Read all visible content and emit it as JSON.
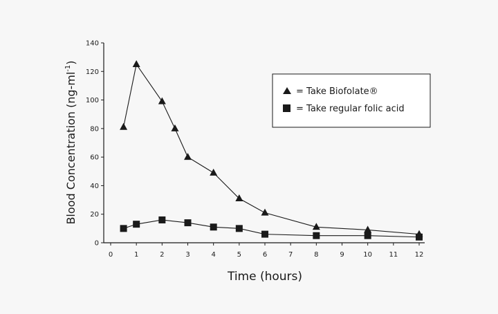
{
  "chart_data": {
    "type": "line",
    "title": "",
    "xlabel": "Time (hours)",
    "ylabel": "Blood Concentration (ng-ml",
    "ylabel_superscript": "-1",
    "ylabel_suffix": ")",
    "xlim": [
      0,
      12
    ],
    "ylim": [
      0,
      140
    ],
    "xticks": [
      0,
      1,
      2,
      3,
      4,
      5,
      6,
      7,
      8,
      9,
      10,
      11,
      12
    ],
    "yticks": [
      0,
      20,
      40,
      60,
      80,
      100,
      120,
      140
    ],
    "grid": false,
    "legend_position": "top-right",
    "series": [
      {
        "name": "= Take Biofolate®",
        "marker": "triangle",
        "x": [
          0.5,
          1,
          2,
          2.5,
          3,
          4,
          5,
          6,
          8,
          10,
          12
        ],
        "y": [
          81,
          125,
          99,
          80,
          60,
          49,
          31,
          21,
          11,
          9,
          6
        ]
      },
      {
        "name": "= Take regular folic acid",
        "marker": "square",
        "x": [
          0.5,
          1,
          2,
          3,
          4,
          5,
          6,
          8,
          10,
          12
        ],
        "y": [
          10,
          13,
          16,
          14,
          11,
          10,
          6,
          5,
          5,
          4
        ]
      }
    ],
    "colors": {
      "line": "#1a1a1a",
      "marker": "#1a1a1a",
      "background": "#f7f7f7",
      "legend_bg": "#ffffff"
    }
  }
}
